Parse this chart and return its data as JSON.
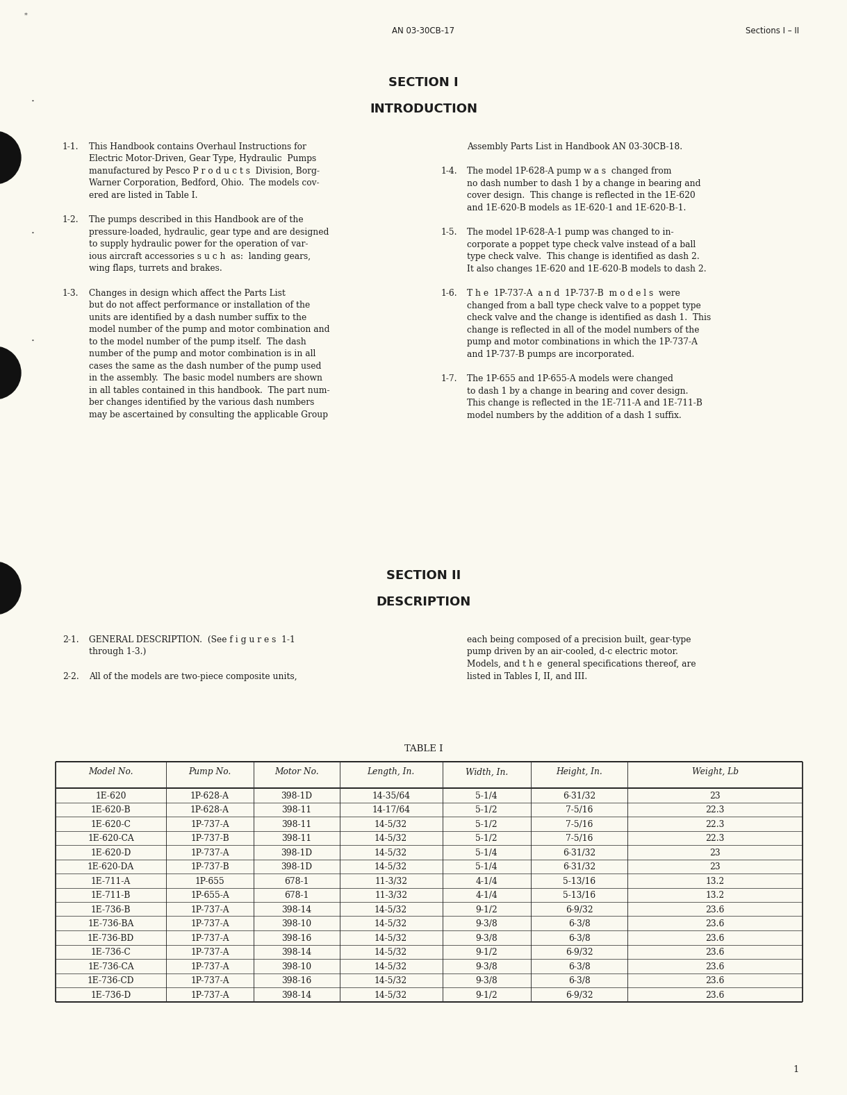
{
  "page_bg": "#faf9f0",
  "header_left": "AN 03-30CB-17",
  "header_right": "Sections I – II",
  "section1_title1": "SECTION I",
  "section1_title2": "INTRODUCTION",
  "section2_title1": "SECTION II",
  "section2_title2": "DESCRIPTION",
  "table_title": "TABLE I",
  "table_headers": [
    "Model No.",
    "Pump No.",
    "Motor No.",
    "Length, In.",
    "Width, In.",
    "Height, In.",
    "Weight, Lb"
  ],
  "table_col_aligns": [
    "left",
    "left",
    "left",
    "left",
    "left",
    "left",
    "left"
  ],
  "table_data": [
    [
      "1E-620",
      "1P-628-A",
      "398-1D",
      "14-35/64",
      "5-1/4",
      "6-31/32",
      "23"
    ],
    [
      "1E-620-B",
      "1P-628-A",
      "398-11",
      "14-17/64",
      "5-1/2",
      "7-5/16",
      "22.3"
    ],
    [
      "1E-620-C",
      "1P-737-A",
      "398-11",
      "14-5/32",
      "5-1/2",
      "7-5/16",
      "22.3"
    ],
    [
      "1E-620-CA",
      "1P-737-B",
      "398-11",
      "14-5/32",
      "5-1/2",
      "7-5/16",
      "22.3"
    ],
    [
      "1E-620-D",
      "1P-737-A",
      "398-1D",
      "14-5/32",
      "5-1/4",
      "6-31/32",
      "23"
    ],
    [
      "1E-620-DA",
      "1P-737-B",
      "398-1D",
      "14-5/32",
      "5-1/4",
      "6-31/32",
      "23"
    ],
    [
      "1E-711-A",
      "1P-655",
      "678-1",
      "11-3/32",
      "4-1/4",
      "5-13/16",
      "13.2"
    ],
    [
      "1E-711-B",
      "1P-655-A",
      "678-1",
      "11-3/32",
      "4-1/4",
      "5-13/16",
      "13.2"
    ],
    [
      "1E-736-B",
      "1P-737-A",
      "398-14",
      "14-5/32",
      "9-1/2",
      "6-9/32",
      "23.6"
    ],
    [
      "1E-736-BA",
      "1P-737-A",
      "398-10",
      "14-5/32",
      "9-3/8",
      "6-3/8",
      "23.6"
    ],
    [
      "1E-736-BD",
      "1P-737-A",
      "398-16",
      "14-5/32",
      "9-3/8",
      "6-3/8",
      "23.6"
    ],
    [
      "1E-736-C",
      "1P-737-A",
      "398-14",
      "14-5/32",
      "9-1/2",
      "6-9/32",
      "23.6"
    ],
    [
      "1E-736-CA",
      "1P-737-A",
      "398-10",
      "14-5/32",
      "9-3/8",
      "6-3/8",
      "23.6"
    ],
    [
      "1E-736-CD",
      "1P-737-A",
      "398-16",
      "14-5/32",
      "9-3/8",
      "6-3/8",
      "23.6"
    ],
    [
      "1E-736-D",
      "1P-737-A",
      "398-14",
      "14-5/32",
      "9-1/2",
      "6-9/32",
      "23.6"
    ]
  ],
  "page_number": "1",
  "left_col_paragraphs": [
    {
      "num": "1-1.",
      "lines": [
        "This Handbook contains Overhaul Instructions for",
        "Electric Motor-Driven, Gear Type, Hydraulic  Pumps",
        "manufactured by Pesco P r o d u c t s  Division, Borg-",
        "Warner Corporation, Bedford, Ohio.  The models cov-",
        "ered are listed in Table I."
      ]
    },
    {
      "num": "1-2.",
      "lines": [
        "The pumps described in this Handbook are of the",
        "pressure-loaded, hydraulic, gear type and are designed",
        "to supply hydraulic power for the operation of var-",
        "ious aircraft accessories s u c h  as:  landing gears,",
        "wing flaps, turrets and brakes."
      ]
    },
    {
      "num": "1-3.",
      "lines": [
        "Changes in design which affect the Parts List",
        "but do not affect performance or installation of the",
        "units are identified by a dash number suffix to the",
        "model number of the pump and motor combination and",
        "to the model number of the pump itself.  The dash",
        "number of the pump and motor combination is in all",
        "cases the same as the dash number of the pump used",
        "in the assembly.  The basic model numbers are shown",
        "in all tables contained in this handbook.  The part num-",
        "ber changes identified by the various dash numbers",
        "may be ascertained by consulting the applicable Group"
      ]
    }
  ],
  "right_col_paragraphs": [
    {
      "num": "",
      "lines": [
        "Assembly Parts List in Handbook AN 03-30CB-18."
      ]
    },
    {
      "num": "1-4.",
      "lines": [
        "The model 1P-628-A pump w a s  changed from",
        "no dash number to dash 1 by a change in bearing and",
        "cover design.  This change is reflected in the 1E-620",
        "and 1E-620-B models as 1E-620-1 and 1E-620-B-1."
      ]
    },
    {
      "num": "1-5.",
      "lines": [
        "The model 1P-628-A-1 pump was changed to in-",
        "corporate a poppet type check valve instead of a ball",
        "type check valve.  This change is identified as dash 2.",
        "It also changes 1E-620 and 1E-620-B models to dash 2."
      ]
    },
    {
      "num": "1-6.",
      "lines": [
        "T h e  1P-737-A  a n d  1P-737-B  m o d e l s  were",
        "changed from a ball type check valve to a poppet type",
        "check valve and the change is identified as dash 1.  This",
        "change is reflected in all of the model numbers of the",
        "pump and motor combinations in which the 1P-737-A",
        "and 1P-737-B pumps are incorporated."
      ]
    },
    {
      "num": "1-7.",
      "lines": [
        "The 1P-655 and 1P-655-A models were changed",
        "to dash 1 by a change in bearing and cover design.",
        "This change is reflected in the 1E-711-A and 1E-711-B",
        "model numbers by the addition of a dash 1 suffix."
      ]
    }
  ],
  "sec2_left_paragraphs": [
    {
      "num": "2-1.",
      "label_bold": "GENERAL DESCRIPTION.",
      "lines": [
        "GENERAL DESCRIPTION.  (See f i g u r e s  1-1",
        "through 1-3.)"
      ]
    },
    {
      "num": "2-2.",
      "label_bold": "",
      "lines": [
        "All of the models are two-piece composite units,"
      ]
    }
  ],
  "sec2_right_paragraphs": [
    {
      "num": "",
      "lines": [
        "each being composed of a precision built, gear-type",
        "pump driven by an air-cooled, d-c electric motor.",
        "Models, and t h e  general specifications thereof, are",
        "listed in Tables I, II, and III."
      ]
    }
  ]
}
